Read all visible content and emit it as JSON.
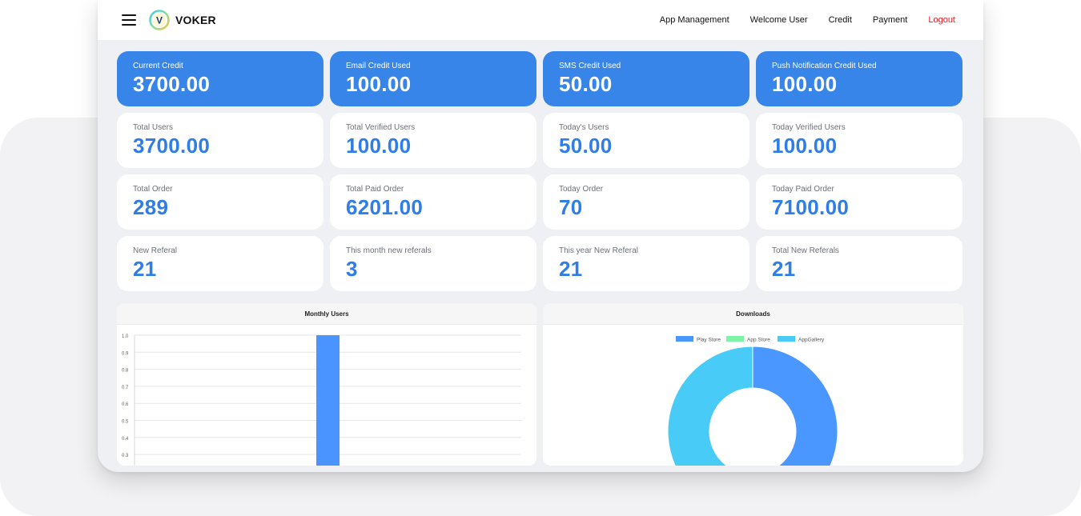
{
  "brand": {
    "name": "VOKER",
    "logo_letter": "V"
  },
  "nav": [
    "App Management",
    "Welcome User",
    "Credit",
    "Payment",
    "Logout"
  ],
  "stats": [
    {
      "label": "Current Credit",
      "value": "3700.00"
    },
    {
      "label": "Email Credit Used",
      "value": "100.00"
    },
    {
      "label": "SMS Credit Used",
      "value": "50.00"
    },
    {
      "label": "Push Notification Credit Used",
      "value": "100.00"
    },
    {
      "label": "Total Users",
      "value": "3700.00"
    },
    {
      "label": "Total Verified Users",
      "value": "100.00"
    },
    {
      "label": "Today's Users",
      "value": "50.00"
    },
    {
      "label": "Today Verified Users",
      "value": "100.00"
    },
    {
      "label": "Total Order",
      "value": "289"
    },
    {
      "label": "Total Paid Order",
      "value": "6201.00"
    },
    {
      "label": "Today Order",
      "value": "70"
    },
    {
      "label": "Today Paid Order",
      "value": "7100.00"
    },
    {
      "label": "New Referal",
      "value": "21"
    },
    {
      "label": "This month new referals",
      "value": "3"
    },
    {
      "label": "This year New Referal",
      "value": "21"
    },
    {
      "label": "Total New Referals",
      "value": "21"
    }
  ],
  "colors": {
    "accent": "#3785e9",
    "value_text": "#2f7de6",
    "logout": "#e0202a",
    "bar": "#4a94ff"
  },
  "chart_data": [
    {
      "type": "bar",
      "title": "Monthly Users",
      "y_ticks": [
        "1.0",
        "0.9",
        "0.8",
        "0.7",
        "0.6",
        "0.5",
        "0.4",
        "0.3"
      ],
      "ylim": [
        0.3,
        1.0
      ],
      "series": [
        {
          "values": [
            1.0
          ]
        }
      ],
      "grid": true
    },
    {
      "type": "pie",
      "title": "Downloads",
      "legend": [
        "Play Store",
        "App Store",
        "AppGallery"
      ],
      "colors": [
        "#4a97ff",
        "#7ef2a6",
        "#49cbf7"
      ],
      "values": [
        50,
        8,
        42
      ],
      "legend_position": "top"
    }
  ]
}
